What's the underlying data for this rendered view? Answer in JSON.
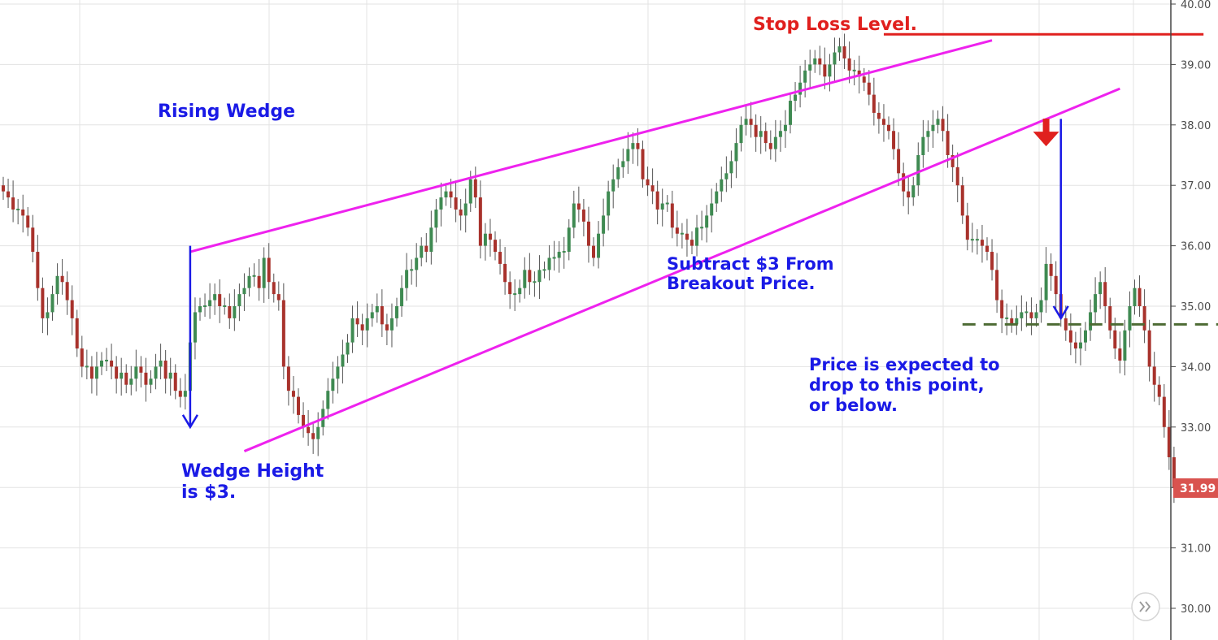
{
  "colors": {
    "grid": "#e3e3e3",
    "axis": "#444444",
    "up": "#3f8a52",
    "down": "#a8322c",
    "wick": "#555555",
    "trendline": "#ee22ee",
    "annotation": "#1a1ae6",
    "stop_loss": "#e0201e",
    "target_line": "#4d6b34",
    "last_price_bg": "#d9534f",
    "last_price_text": "#ffffff"
  },
  "chart_data": {
    "type": "candlestick",
    "title": "",
    "ylim": [
      29.5,
      40.0
    ],
    "y_ticks": [
      "30.00",
      "31.00",
      "32.00",
      "33.00",
      "34.00",
      "35.00",
      "36.00",
      "37.00",
      "38.00",
      "39.00",
      "40.00"
    ],
    "y_tick_values": [
      30,
      31,
      32,
      33,
      34,
      35,
      36,
      37,
      38,
      39,
      40
    ],
    "axis_side": "right",
    "grid": true,
    "last_price": "31.99",
    "closes": [
      36.9,
      36.8,
      36.6,
      36.6,
      36.5,
      36.3,
      35.9,
      35.3,
      34.8,
      34.9,
      35.2,
      35.5,
      35.4,
      35.1,
      34.8,
      34.3,
      34.0,
      34.0,
      33.8,
      34.0,
      34.1,
      34.1,
      34.0,
      33.8,
      33.9,
      33.7,
      33.8,
      34.0,
      33.9,
      33.7,
      33.8,
      34.0,
      34.1,
      33.8,
      33.9,
      33.6,
      33.5,
      33.6,
      34.4,
      34.9,
      35.0,
      35.0,
      35.1,
      35.2,
      35.0,
      35.0,
      34.8,
      35.0,
      35.2,
      35.3,
      35.5,
      35.5,
      35.3,
      35.8,
      35.4,
      35.2,
      35.1,
      34.0,
      33.6,
      33.5,
      33.2,
      33.0,
      32.9,
      32.8,
      33.0,
      33.3,
      33.6,
      33.8,
      34.0,
      34.2,
      34.4,
      34.8,
      34.7,
      34.6,
      34.8,
      34.9,
      35.0,
      34.7,
      34.6,
      34.8,
      35.0,
      35.3,
      35.6,
      35.6,
      35.8,
      36.0,
      35.9,
      36.3,
      36.6,
      36.8,
      36.9,
      36.8,
      36.6,
      36.5,
      36.7,
      37.1,
      36.8,
      36.0,
      36.2,
      36.1,
      35.9,
      35.7,
      35.4,
      35.2,
      35.2,
      35.3,
      35.6,
      35.4,
      35.4,
      35.6,
      35.6,
      35.8,
      35.8,
      35.9,
      35.9,
      36.3,
      36.7,
      36.6,
      36.4,
      36.0,
      35.8,
      36.2,
      36.5,
      36.9,
      37.1,
      37.3,
      37.4,
      37.6,
      37.7,
      37.6,
      37.1,
      37.0,
      36.9,
      36.6,
      36.7,
      36.7,
      36.3,
      36.2,
      36.2,
      36.1,
      36.0,
      36.3,
      36.3,
      36.5,
      36.7,
      36.9,
      37.1,
      37.2,
      37.4,
      37.7,
      38.0,
      38.1,
      38.0,
      37.8,
      37.9,
      37.7,
      37.6,
      37.8,
      37.9,
      38.0,
      38.4,
      38.5,
      38.7,
      38.9,
      39.0,
      39.1,
      39.0,
      38.8,
      39.0,
      39.2,
      39.3,
      39.1,
      38.9,
      38.9,
      38.8,
      38.7,
      38.5,
      38.2,
      38.1,
      38.0,
      37.9,
      37.6,
      37.2,
      36.9,
      36.8,
      37.0,
      37.5,
      37.8,
      37.9,
      38.0,
      38.1,
      37.9,
      37.5,
      37.3,
      37.0,
      36.5,
      36.1,
      36.1,
      36.1,
      36.0,
      35.9,
      35.6,
      35.1,
      34.8,
      34.8,
      34.7,
      34.8,
      34.9,
      34.9,
      34.8,
      34.9,
      35.1,
      35.7,
      35.5,
      35.2,
      34.8,
      34.6,
      34.4,
      34.3,
      34.4,
      34.6,
      34.9,
      35.2,
      35.4,
      35.0,
      34.6,
      34.3,
      34.1,
      34.6,
      35.0,
      35.3,
      35.0,
      34.6,
      34.0,
      33.7,
      33.5,
      33.0,
      32.5,
      31.99
    ]
  },
  "pattern": {
    "upper_line": [
      [
        35.9,
        38
      ],
      [
        39.4,
        201
      ]
    ],
    "lower_line": [
      [
        32.6,
        49
      ],
      [
        38.6,
        227
      ]
    ],
    "stop_loss_line_value": 39.5,
    "stop_loss_range": [
      179,
      244
    ],
    "target_value": 34.7,
    "target_range": [
      195,
      262
    ],
    "wedge_height_arrow": {
      "x_index": 38,
      "from": 36.0,
      "to": 33.0
    },
    "target_arrow": {
      "x_index": 215,
      "from": 38.1,
      "to": 34.8
    },
    "breakout_marker": {
      "x_index": 212,
      "value": 37.7
    }
  },
  "annotations": {
    "stop_loss": "Stop Loss Level.",
    "rising_wedge": "Rising Wedge",
    "wedge_height_line1": "Wedge Height",
    "wedge_height_line2": "is $3.",
    "subtract_line1": "Subtract $3 From",
    "subtract_line2": "Breakout Price.",
    "expected_line1": "Price is expected to",
    "expected_line2": "drop to this point,",
    "expected_line3": "or below."
  },
  "scroll_button_icon": "double-chevron-right-icon"
}
